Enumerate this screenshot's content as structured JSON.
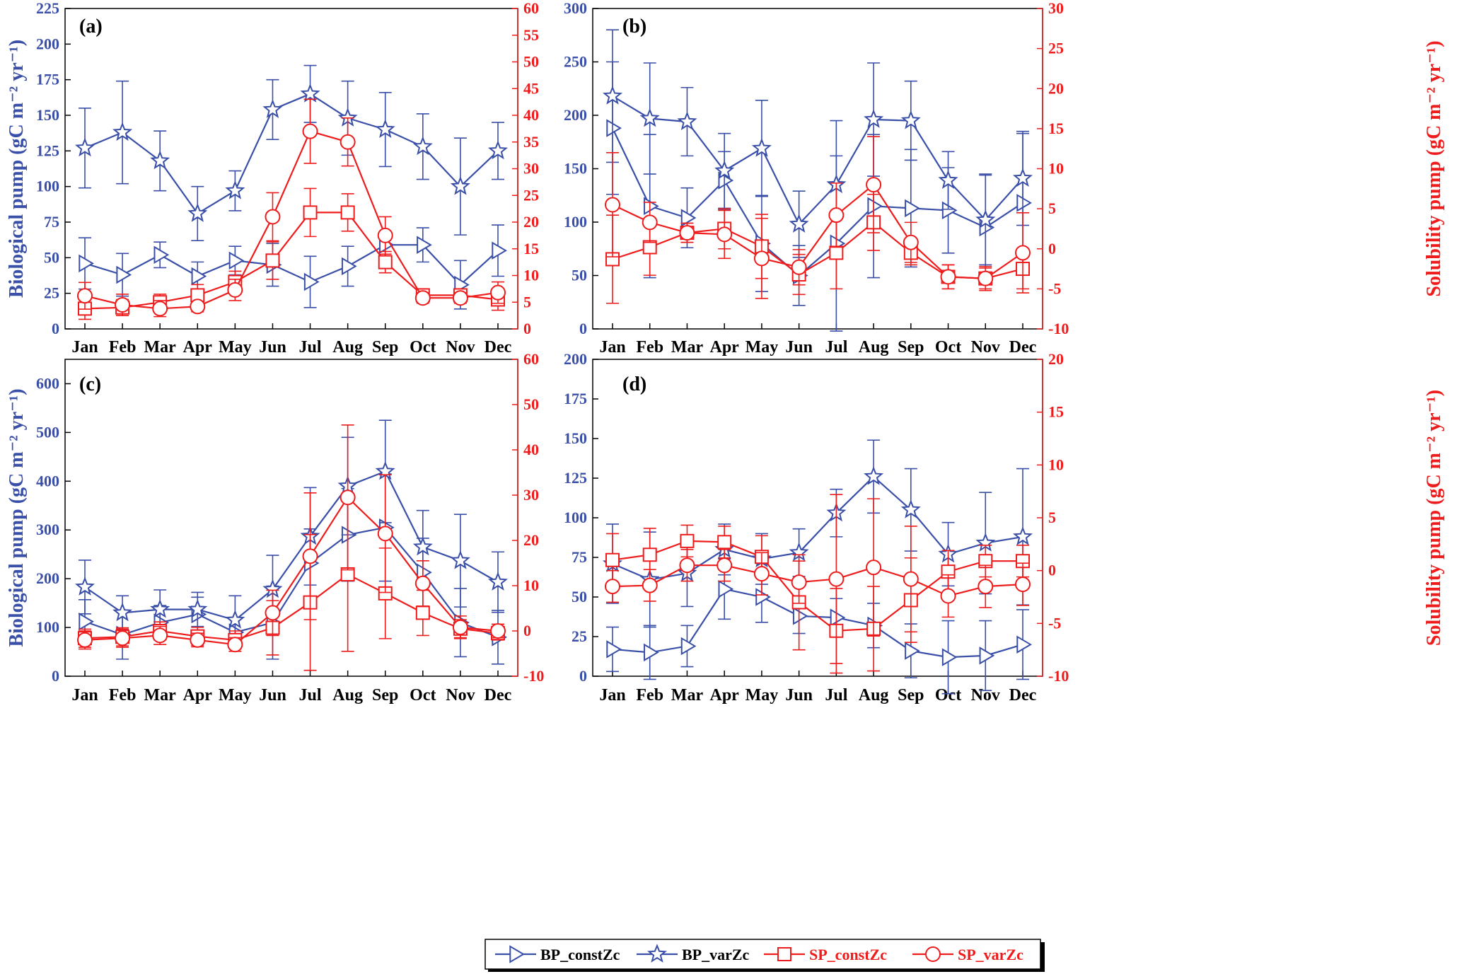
{
  "colors": {
    "bp": "#3a4fa8",
    "sp": "#ee1c1c"
  },
  "months": [
    "Jan",
    "Feb",
    "Mar",
    "Apr",
    "May",
    "Jun",
    "Jul",
    "Aug",
    "Sep",
    "Oct",
    "Nov",
    "Dec"
  ],
  "legend": {
    "bp_const": "BP_constZc",
    "bp_var": "BP_varZc",
    "sp_const": "SP_constZc",
    "sp_var": "SP_varZc"
  },
  "chart_data": [
    {
      "type": "line",
      "label": "(a)",
      "left_axis": {
        "title": "Biological pump (gC m⁻² yr⁻¹)",
        "range": [
          0,
          225
        ],
        "ticks": [
          0,
          25,
          50,
          75,
          100,
          125,
          150,
          175,
          200,
          225
        ]
      },
      "right_axis": {
        "title": "",
        "range": [
          0,
          60
        ],
        "ticks": [
          0,
          5,
          10,
          15,
          20,
          25,
          30,
          35,
          40,
          45,
          50,
          55,
          60
        ]
      },
      "categories": [
        "Jan",
        "Feb",
        "Mar",
        "Apr",
        "May",
        "Jun",
        "Jul",
        "Aug",
        "Sep",
        "Oct",
        "Nov",
        "Dec"
      ],
      "series": [
        {
          "name": "BP_constZc",
          "axis": "left",
          "marker": "triangle",
          "values": [
            46,
            38,
            52,
            37,
            48,
            45,
            33,
            44,
            59,
            59,
            31,
            55
          ],
          "err": [
            18,
            15,
            9,
            10,
            10,
            15,
            18,
            14,
            8,
            12,
            17,
            18
          ]
        },
        {
          "name": "BP_varZc",
          "axis": "left",
          "marker": "star",
          "values": [
            127,
            138,
            118,
            81,
            97,
            154,
            165,
            148,
            140,
            128,
            100,
            125
          ],
          "err": [
            28,
            36,
            21,
            19,
            14,
            21,
            20,
            26,
            26,
            23,
            34,
            20
          ]
        },
        {
          "name": "SP_constZc",
          "axis": "right",
          "marker": "square",
          "values": [
            3.8,
            4,
            5,
            6.3,
            8.8,
            12.8,
            21.8,
            21.8,
            12.5,
            6.3,
            6.3,
            5.5
          ],
          "err": [
            2,
            1.5,
            1.5,
            2,
            2,
            3.5,
            4.5,
            3.5,
            2,
            1,
            1,
            2
          ]
        },
        {
          "name": "SP_varZc",
          "axis": "right",
          "marker": "circle",
          "values": [
            6.2,
            4.5,
            3.8,
            4.2,
            7.3,
            21,
            37,
            35,
            17.5,
            5.8,
            5.8,
            6.8
          ],
          "err": [
            2.5,
            2,
            1.5,
            1,
            2,
            4.5,
            6,
            4.5,
            3.5,
            1,
            1,
            2
          ]
        }
      ]
    },
    {
      "type": "line",
      "label": "(b)",
      "left_axis": {
        "title": "",
        "range": [
          0,
          300
        ],
        "ticks": [
          0,
          50,
          100,
          150,
          200,
          250,
          300
        ]
      },
      "right_axis": {
        "title": "Solubility pump (gC m⁻² yr⁻¹)",
        "range": [
          -10,
          30
        ],
        "ticks": [
          -10,
          -5,
          0,
          5,
          10,
          15,
          20,
          25,
          30
        ]
      },
      "categories": [
        "Jan",
        "Feb",
        "Mar",
        "Apr",
        "May",
        "Jun",
        "Jul",
        "Aug",
        "Sep",
        "Oct",
        "Nov",
        "Dec"
      ],
      "series": [
        {
          "name": "BP_constZc",
          "axis": "left",
          "marker": "triangle",
          "values": [
            188,
            115,
            104,
            139,
            80,
            50,
            80,
            115,
            113,
            111,
            95,
            118
          ],
          "err": [
            62,
            67,
            28,
            27,
            45,
            28,
            82,
            67,
            55,
            40,
            50,
            65
          ]
        },
        {
          "name": "BP_varZc",
          "axis": "left",
          "marker": "star",
          "values": [
            218,
            197,
            194,
            148,
            169,
            98,
            135,
            196,
            195,
            139,
            102,
            141
          ],
          "err": [
            62,
            52,
            32,
            35,
            45,
            31,
            60,
            53,
            37,
            27,
            42,
            44
          ]
        },
        {
          "name": "SP_constZc",
          "axis": "right",
          "marker": "square",
          "values": [
            -1.3,
            0.2,
            2,
            2.5,
            0.3,
            -3.2,
            -0.5,
            3.3,
            -0.5,
            -3.5,
            -3.7,
            -2.5
          ],
          "err": [
            5.5,
            3.5,
            1.2,
            2.5,
            4,
            2.5,
            4.5,
            3.5,
            1.5,
            1.5,
            1.3,
            2.5
          ]
        },
        {
          "name": "SP_varZc",
          "axis": "right",
          "marker": "circle",
          "values": [
            5.5,
            3.3,
            2,
            1.8,
            -1.2,
            -2.3,
            4.2,
            8,
            0.8,
            -3.5,
            -3.7,
            -0.5
          ],
          "err": [
            6.5,
            2.5,
            1.2,
            3,
            5,
            2.2,
            4,
            6,
            2.5,
            1.5,
            1.5,
            5
          ]
        }
      ]
    },
    {
      "type": "line",
      "label": "(c)",
      "left_axis": {
        "title": "Biological pump (gC m⁻² yr⁻¹)",
        "range": [
          0,
          650
        ],
        "ticks": [
          0,
          100,
          200,
          300,
          400,
          500,
          600
        ]
      },
      "right_axis": {
        "title": "",
        "range": [
          -10,
          60
        ],
        "ticks": [
          -10,
          0,
          10,
          20,
          30,
          40,
          50,
          60
        ]
      },
      "categories": [
        "Jan",
        "Feb",
        "Mar",
        "Apr",
        "May",
        "Jun",
        "Jul",
        "Aug",
        "Sep",
        "Oct",
        "Nov",
        "Dec"
      ],
      "series": [
        {
          "name": "BP_constZc",
          "axis": "left",
          "marker": "triangle",
          "values": [
            112,
            85,
            110,
            127,
            90,
            110,
            232,
            290,
            305,
            213,
            110,
            80
          ],
          "err": [
            45,
            50,
            35,
            35,
            30,
            75,
            70,
            95,
            110,
            70,
            70,
            55
          ]
        },
        {
          "name": "BP_varZc",
          "axis": "left",
          "marker": "star",
          "values": [
            183,
            130,
            137,
            137,
            115,
            178,
            287,
            390,
            420,
            265,
            237,
            193
          ],
          "err": [
            55,
            35,
            40,
            35,
            50,
            70,
            100,
            100,
            105,
            75,
            95,
            62
          ]
        },
        {
          "name": "SP_constZc",
          "axis": "right",
          "marker": "square",
          "values": [
            -1.6,
            -1.3,
            0,
            -1.2,
            -2,
            0.7,
            6.3,
            12.5,
            8.3,
            4,
            0.5,
            -0.5
          ],
          "err": [
            2,
            2,
            2,
            2,
            2,
            6,
            15,
            17,
            10,
            5,
            2,
            1.5
          ]
        },
        {
          "name": "SP_varZc",
          "axis": "right",
          "marker": "circle",
          "values": [
            -2,
            -1.6,
            -1,
            -2,
            -3,
            4,
            16.5,
            29.5,
            21.5,
            10.5,
            0.8,
            0
          ],
          "err": [
            2,
            2,
            2,
            1.5,
            1.5,
            5,
            14,
            16,
            13,
            5,
            2.5,
            1.5
          ]
        }
      ]
    },
    {
      "type": "line",
      "label": "(d)",
      "left_axis": {
        "title": "",
        "range": [
          0,
          200
        ],
        "ticks": [
          0,
          25,
          50,
          75,
          100,
          125,
          150,
          175,
          200
        ]
      },
      "right_axis": {
        "title": "Solubility pump (gC m⁻² yr⁻¹)",
        "range": [
          -10,
          20
        ],
        "ticks": [
          -10,
          -5,
          0,
          5,
          10,
          15,
          20
        ]
      },
      "categories": [
        "Jan",
        "Feb",
        "Mar",
        "Apr",
        "May",
        "Jun",
        "Jul",
        "Aug",
        "Sep",
        "Oct",
        "Nov",
        "Dec"
      ],
      "series": [
        {
          "name": "BP_constZc",
          "axis": "left",
          "marker": "triangle",
          "values": [
            17,
            15,
            19,
            55,
            50,
            38,
            37,
            32,
            16,
            12,
            13,
            20
          ],
          "err": [
            14,
            17,
            13,
            19,
            16,
            11,
            12,
            14,
            17,
            23,
            22,
            22
          ]
        },
        {
          "name": "BP_varZc",
          "axis": "left",
          "marker": "star",
          "values": [
            71,
            61,
            65,
            80,
            74,
            78,
            103,
            126,
            105,
            77,
            84,
            88
          ],
          "err": [
            25,
            30,
            21,
            16,
            16,
            15,
            15,
            23,
            26,
            20,
            32,
            43
          ]
        },
        {
          "name": "SP_constZc",
          "axis": "right",
          "marker": "square",
          "values": [
            1,
            1.5,
            2.8,
            2.7,
            1.3,
            -3,
            -5.7,
            -5.5,
            -2.8,
            -0.1,
            0.9,
            0.9
          ],
          "err": [
            2.5,
            2.5,
            1.5,
            1.5,
            2,
            4.5,
            4,
            4,
            4,
            2,
            1.5,
            1.5
          ]
        },
        {
          "name": "SP_varZc",
          "axis": "right",
          "marker": "circle",
          "values": [
            -1.5,
            -1.4,
            0.5,
            0.5,
            -0.3,
            -1.1,
            -0.8,
            0.3,
            -0.8,
            -2.4,
            -1.5,
            -1.3
          ],
          "err": [
            1.5,
            1.5,
            1.5,
            1.5,
            2,
            2,
            8,
            6.5,
            5,
            2,
            2,
            2
          ]
        }
      ]
    }
  ]
}
